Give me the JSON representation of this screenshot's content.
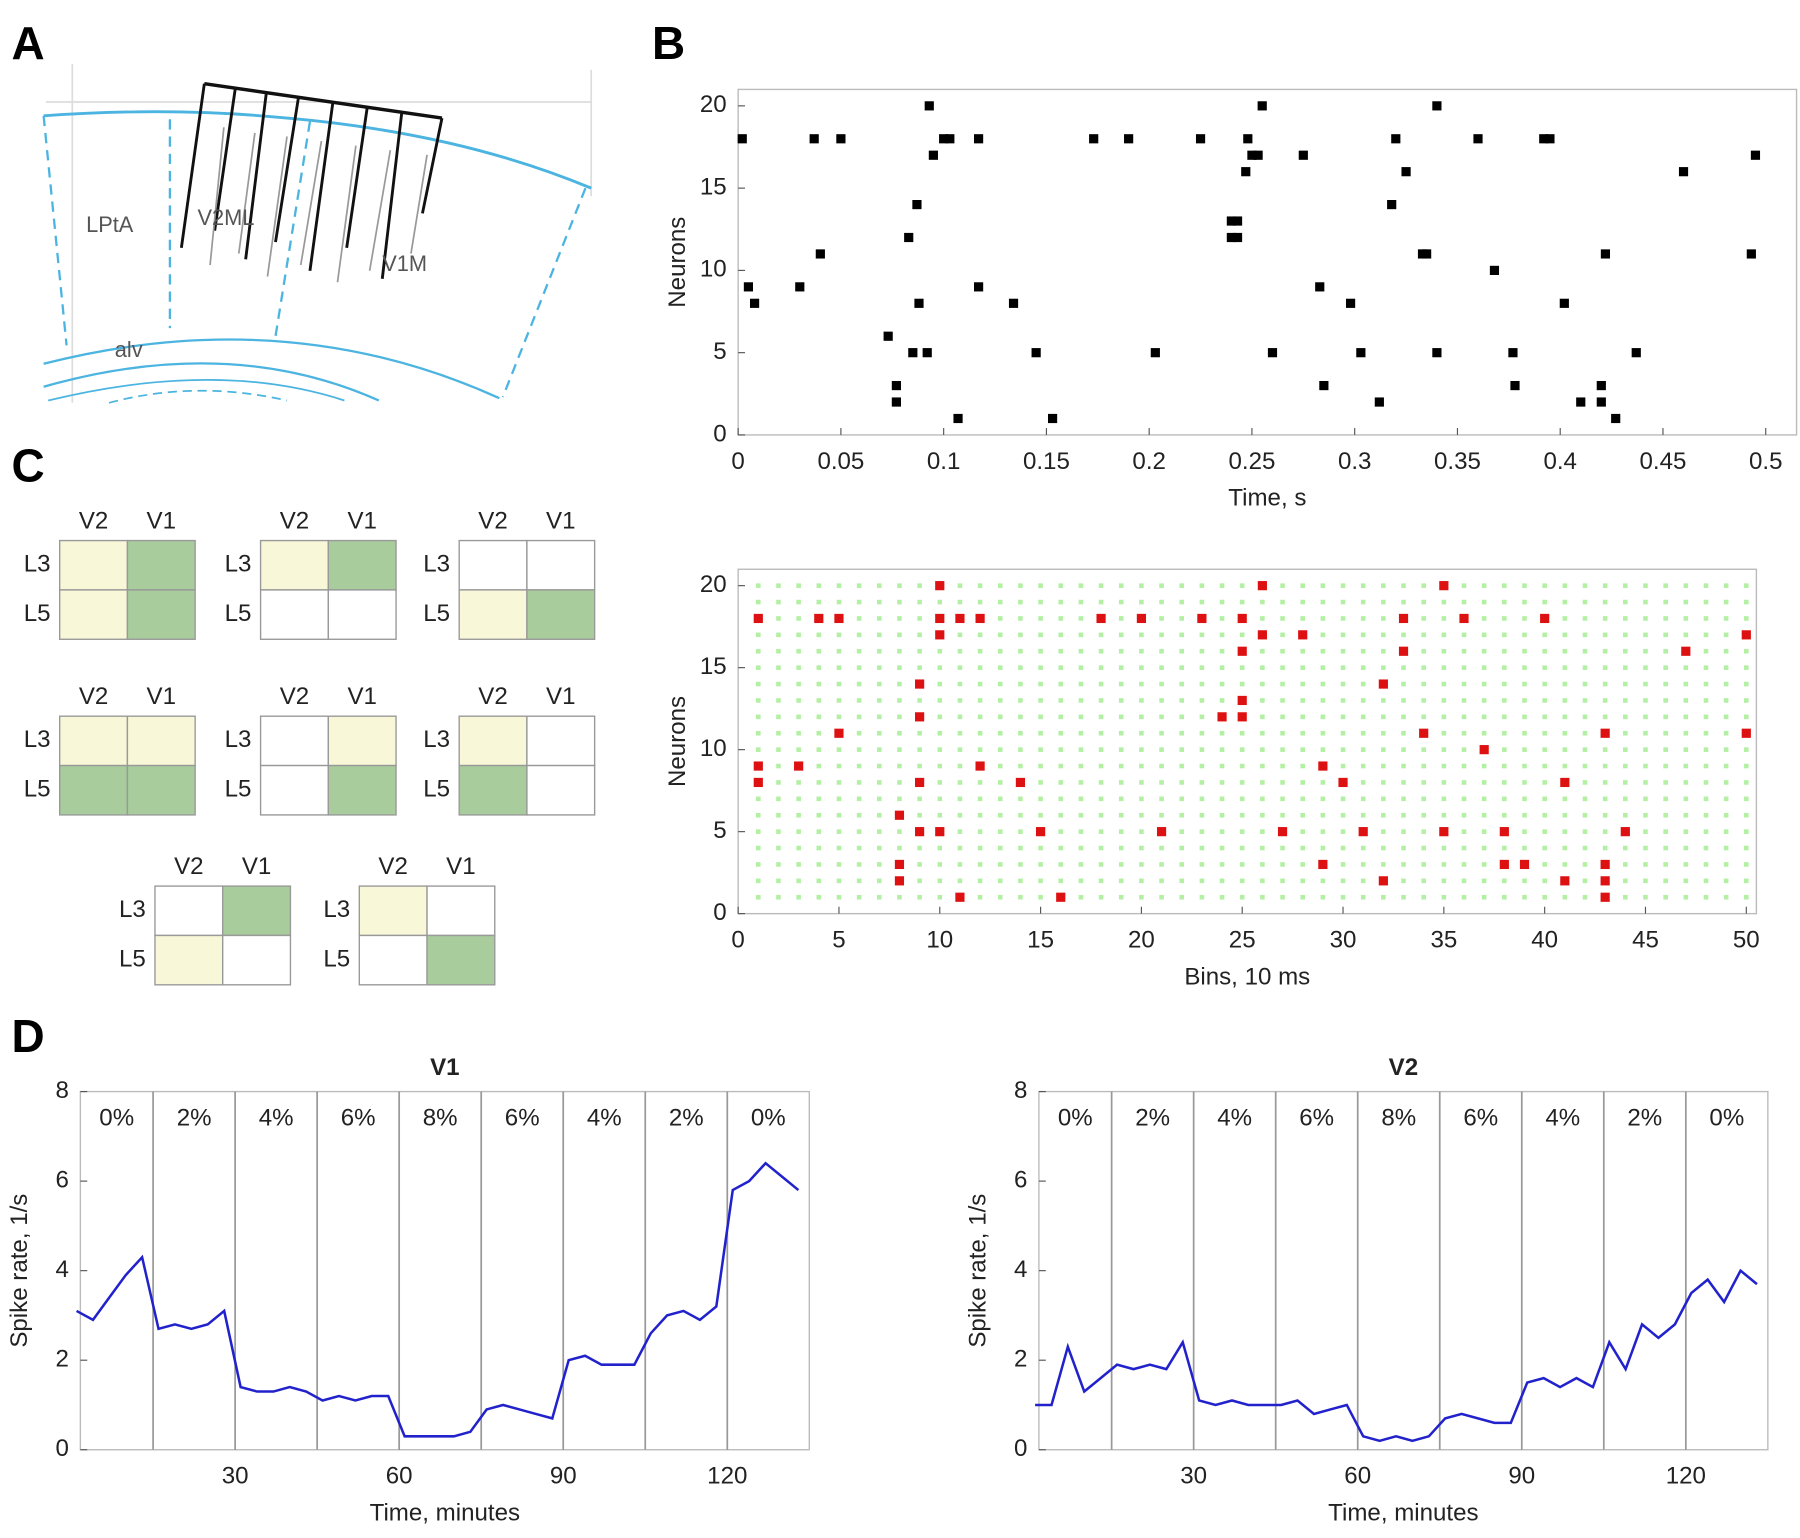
{
  "panel_labels": [
    "A",
    "B",
    "C",
    "D"
  ],
  "diagram": {
    "labels": [
      "LPtA",
      "V2ML",
      "V1M",
      "alv"
    ]
  },
  "grids": [
    {
      "columns": [
        "V2",
        "V1"
      ],
      "rows": [
        "L3",
        "L5"
      ],
      "cells": [
        [
          "#f8f8d8",
          "#a8cc9c"
        ],
        [
          "#f8f8d8",
          "#a8cc9c"
        ]
      ]
    },
    {
      "columns": [
        "V2",
        "V1"
      ],
      "rows": [
        "L3",
        "L5"
      ],
      "cells": [
        [
          "#f8f8d8",
          "#a8cc9c"
        ],
        [
          "#ffffff",
          "#ffffff"
        ]
      ]
    },
    {
      "columns": [
        "V2",
        "V1"
      ],
      "rows": [
        "L3",
        "L5"
      ],
      "cells": [
        [
          "#ffffff",
          "#ffffff"
        ],
        [
          "#f8f8d8",
          "#a8cc9c"
        ]
      ]
    },
    {
      "columns": [
        "V2",
        "V1"
      ],
      "rows": [
        "L3",
        "L5"
      ],
      "cells": [
        [
          "#f8f8d8",
          "#f8f8d8"
        ],
        [
          "#a8cc9c",
          "#a8cc9c"
        ]
      ]
    },
    {
      "columns": [
        "V2",
        "V1"
      ],
      "rows": [
        "L3",
        "L5"
      ],
      "cells": [
        [
          "#ffffff",
          "#f8f8d8"
        ],
        [
          "#ffffff",
          "#a8cc9c"
        ]
      ]
    },
    {
      "columns": [
        "V2",
        "V1"
      ],
      "rows": [
        "L3",
        "L5"
      ],
      "cells": [
        [
          "#f8f8d8",
          "#ffffff"
        ],
        [
          "#a8cc9c",
          "#ffffff"
        ]
      ]
    },
    {
      "columns": [
        "V2",
        "V1"
      ],
      "rows": [
        "L3",
        "L5"
      ],
      "cells": [
        [
          "#ffffff",
          "#a8cc9c"
        ],
        [
          "#f8f8d8",
          "#ffffff"
        ]
      ]
    },
    {
      "columns": [
        "V2",
        "V1"
      ],
      "rows": [
        "L3",
        "L5"
      ],
      "cells": [
        [
          "#f8f8d8",
          "#ffffff"
        ],
        [
          "#ffffff",
          "#a8cc9c"
        ]
      ]
    }
  ],
  "chart_data": [
    {
      "type": "scatter",
      "xlabel": "Time, s",
      "ylabel": "Neurons",
      "color": "#000000",
      "x": [
        0.002,
        0.005,
        0.008,
        0.03,
        0.037,
        0.04,
        0.05,
        0.073,
        0.077,
        0.077,
        0.083,
        0.085,
        0.087,
        0.088,
        0.092,
        0.093,
        0.095,
        0.1,
        0.103,
        0.107,
        0.117,
        0.117,
        0.134,
        0.145,
        0.153,
        0.173,
        0.19,
        0.203,
        0.225,
        0.24,
        0.24,
        0.243,
        0.243,
        0.247,
        0.248,
        0.25,
        0.253,
        0.255,
        0.26,
        0.275,
        0.283,
        0.285,
        0.298,
        0.303,
        0.312,
        0.318,
        0.32,
        0.325,
        0.333,
        0.335,
        0.34,
        0.34,
        0.36,
        0.368,
        0.377,
        0.378,
        0.392,
        0.395,
        0.402,
        0.41,
        0.42,
        0.42,
        0.422,
        0.427,
        0.437,
        0.46,
        0.493,
        0.495
      ],
      "y": [
        18,
        9,
        8,
        9,
        18,
        11,
        18,
        6,
        3,
        2,
        12,
        5,
        14,
        8,
        5,
        20,
        17,
        18,
        18,
        1,
        18,
        9,
        8,
        5,
        1,
        18,
        18,
        5,
        18,
        13,
        12,
        13,
        12,
        16,
        18,
        17,
        17,
        20,
        5,
        17,
        9,
        3,
        8,
        5,
        2,
        14,
        18,
        16,
        11,
        11,
        5,
        20,
        18,
        10,
        5,
        3,
        18,
        18,
        8,
        2,
        3,
        2,
        11,
        1,
        5,
        16,
        11,
        17
      ],
      "xlim": [
        0,
        0.515
      ],
      "ylim": [
        0,
        21
      ],
      "xticks": [
        0,
        0.05,
        0.1,
        0.15,
        0.2,
        0.25,
        0.3,
        0.35,
        0.4,
        0.45,
        0.5
      ],
      "yticks": [
        0,
        5,
        10,
        15,
        20
      ]
    },
    {
      "type": "scatter",
      "xlabel": "Bins, 10 ms",
      "ylabel": "Neurons",
      "color": "#dd1111",
      "bin_grid_color": "#b4f0a4",
      "x": [
        1,
        1,
        1,
        3,
        4,
        5,
        5,
        8,
        8,
        8,
        9,
        9,
        9,
        9,
        10,
        10,
        10,
        10,
        11,
        11,
        12,
        12,
        14,
        15,
        16,
        18,
        20,
        21,
        23,
        24,
        25,
        25,
        25,
        25,
        26,
        26,
        27,
        28,
        29,
        29,
        30,
        31,
        32,
        32,
        33,
        33,
        34,
        35,
        35,
        36,
        37,
        38,
        38,
        39,
        40,
        41,
        41,
        43,
        43,
        43,
        43,
        44,
        47,
        50,
        50
      ],
      "y": [
        18,
        9,
        8,
        9,
        18,
        18,
        11,
        6,
        3,
        2,
        14,
        12,
        8,
        5,
        20,
        18,
        17,
        5,
        18,
        1,
        18,
        9,
        8,
        5,
        1,
        18,
        18,
        5,
        18,
        12,
        13,
        12,
        18,
        16,
        20,
        17,
        5,
        17,
        9,
        3,
        8,
        5,
        14,
        2,
        18,
        16,
        11,
        20,
        5,
        18,
        10,
        5,
        3,
        3,
        18,
        8,
        2,
        11,
        3,
        2,
        1,
        5,
        16,
        17,
        11
      ],
      "xlim": [
        0,
        50.5
      ],
      "ylim": [
        0,
        21
      ],
      "xticks": [
        0,
        5,
        10,
        15,
        20,
        25,
        30,
        35,
        40,
        45,
        50
      ],
      "yticks": [
        0,
        5,
        10,
        15,
        20
      ]
    },
    {
      "type": "line",
      "title": "V1",
      "xlabel": "Time, minutes",
      "ylabel": "Spike rate, 1/s",
      "color": "#2222cc",
      "x": [
        1,
        4,
        7,
        10,
        13,
        16,
        19,
        22,
        25,
        28,
        31,
        34,
        37,
        40,
        43,
        46,
        49,
        52,
        55,
        58,
        61,
        64,
        67,
        70,
        73,
        76,
        79,
        82,
        85,
        88,
        91,
        94,
        97,
        100,
        103,
        106,
        109,
        112,
        115,
        118,
        121,
        124,
        127,
        130,
        133
      ],
      "values": [
        3.1,
        2.9,
        3.4,
        3.9,
        4.3,
        2.7,
        2.8,
        2.7,
        2.8,
        3.1,
        1.4,
        1.3,
        1.3,
        1.4,
        1.3,
        1.1,
        1.2,
        1.1,
        1.2,
        1.2,
        0.3,
        0.3,
        0.3,
        0.3,
        0.4,
        0.9,
        1.0,
        0.9,
        0.8,
        0.7,
        2.0,
        2.1,
        1.9,
        1.9,
        1.9,
        2.6,
        3.0,
        3.1,
        2.9,
        3.2,
        5.8,
        6.0,
        6.4,
        6.1,
        5.8
      ],
      "xlim": [
        1.7,
        135
      ],
      "ylim": [
        0,
        8
      ],
      "xticks": [
        30,
        60,
        90,
        120
      ],
      "yticks": [
        0,
        2,
        4,
        6,
        8
      ],
      "phase_boundaries": [
        15,
        30,
        45,
        60,
        75,
        90,
        105,
        120
      ],
      "phase_labels": [
        "0%",
        "2%",
        "4%",
        "6%",
        "8%",
        "6%",
        "4%",
        "2%",
        "0%"
      ]
    },
    {
      "type": "line",
      "title": "V2",
      "xlabel": "Time, minutes",
      "ylabel": "Spike rate, 1/s",
      "color": "#2222cc",
      "x": [
        1,
        4,
        7,
        10,
        13,
        16,
        19,
        22,
        25,
        28,
        31,
        34,
        37,
        40,
        43,
        46,
        49,
        52,
        55,
        58,
        61,
        64,
        67,
        70,
        73,
        76,
        79,
        82,
        85,
        88,
        91,
        94,
        97,
        100,
        103,
        106,
        109,
        112,
        115,
        118,
        121,
        124,
        127,
        130,
        133
      ],
      "values": [
        1.0,
        1.0,
        2.3,
        1.3,
        1.6,
        1.9,
        1.8,
        1.9,
        1.8,
        2.4,
        1.1,
        1.0,
        1.1,
        1.0,
        1.0,
        1.0,
        1.1,
        0.8,
        0.9,
        1.0,
        0.3,
        0.2,
        0.3,
        0.2,
        0.3,
        0.7,
        0.8,
        0.7,
        0.6,
        0.6,
        1.5,
        1.6,
        1.4,
        1.6,
        1.4,
        2.4,
        1.8,
        2.8,
        2.5,
        2.8,
        3.5,
        3.8,
        3.3,
        4.0,
        3.7
      ],
      "xlim": [
        1.7,
        135
      ],
      "ylim": [
        0,
        8
      ],
      "xticks": [
        30,
        60,
        90,
        120
      ],
      "yticks": [
        0,
        2,
        4,
        6,
        8
      ],
      "phase_boundaries": [
        15,
        30,
        45,
        60,
        75,
        90,
        105,
        120
      ],
      "phase_labels": [
        "0%",
        "2%",
        "4%",
        "6%",
        "8%",
        "6%",
        "4%",
        "2%",
        "0%"
      ]
    }
  ]
}
